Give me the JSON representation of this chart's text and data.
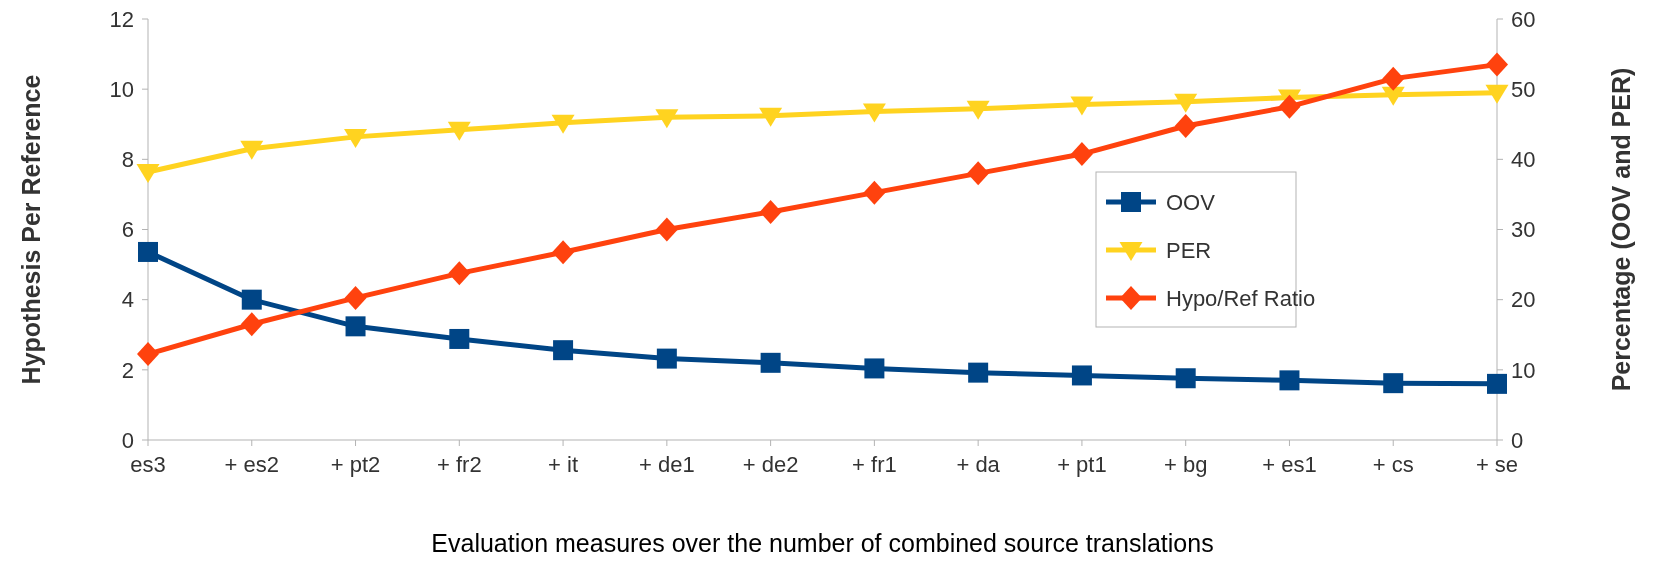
{
  "chart_data": {
    "type": "line",
    "xlabel": "Evaluation measures over the number of combined source translations",
    "ylabel": "Hypothesis Per Reference",
    "y2label": "Percentage (OOV and PER)",
    "categories": [
      "es3",
      "+ es2",
      "+ pt2",
      "+ fr2",
      "+ it",
      "+ de1",
      "+ de2",
      "+ fr1",
      "+ da",
      "+ pt1",
      "+ bg",
      "+ es1",
      "+ cs",
      "+ se"
    ],
    "series": [
      {
        "name": "OOV",
        "color": "#004586",
        "axis": "y2",
        "marker": "square",
        "values": [
          26.8,
          20,
          16.2,
          14.4,
          12.8,
          11.6,
          11,
          10.2,
          9.6,
          9.2,
          8.8,
          8.5,
          8.1,
          8
        ]
      },
      {
        "name": "PER",
        "color": "#ffd320",
        "axis": "y2",
        "marker": "triangle",
        "values": [
          38.2,
          41.5,
          43.2,
          44.2,
          45.2,
          46,
          46.2,
          46.8,
          47.2,
          47.8,
          48.2,
          48.8,
          49.2,
          49.5
        ]
      },
      {
        "name": "Hypo/Ref Ratio",
        "color": "#ff420e",
        "marker": "diamond",
        "values": [
          2.45,
          3.3,
          4.05,
          4.75,
          5.35,
          6,
          6.5,
          7.05,
          7.6,
          8.15,
          8.95,
          9.5,
          10.3,
          10.7
        ]
      }
    ],
    "ylim": [
      0,
      12
    ],
    "yticks": [
      0,
      2,
      4,
      6,
      8,
      10,
      12
    ],
    "y2lim": [
      0,
      60
    ],
    "y2ticks": [
      0,
      10,
      20,
      30,
      40,
      50,
      60
    ],
    "legend": "right",
    "grid": false
  }
}
